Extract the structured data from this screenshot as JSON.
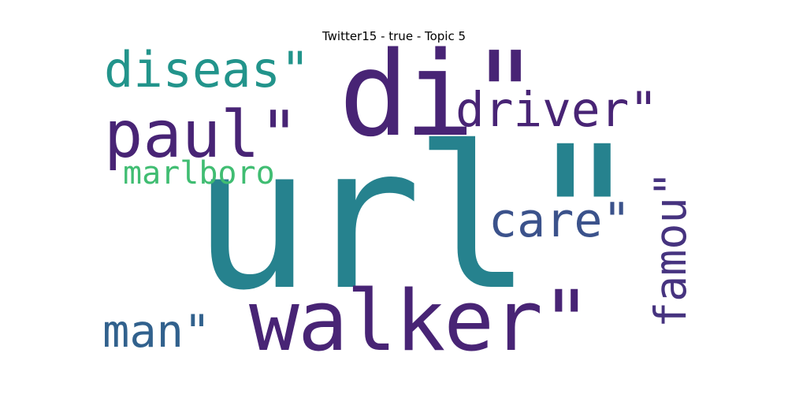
{
  "title": "Twitter15 - true - Topic 5",
  "words": [
    {
      "text": "url\"",
      "color": "#26828e",
      "id": "word-url"
    },
    {
      "text": "di\"",
      "color": "#482475",
      "id": "word-di"
    },
    {
      "text": "walker\"",
      "color": "#482475",
      "id": "word-walker"
    },
    {
      "text": "paul\"",
      "color": "#482475",
      "id": "word-paul"
    },
    {
      "text": "diseas\"",
      "color": "#22948b",
      "id": "word-diseas"
    },
    {
      "text": "driver\"",
      "color": "#482475",
      "id": "word-driver"
    },
    {
      "text": "marlboro",
      "color": "#40bd72",
      "id": "word-marlboro"
    },
    {
      "text": "care\"",
      "color": "#3b528b",
      "id": "word-care"
    },
    {
      "text": "famou\"",
      "color": "#46337f",
      "id": "word-famou"
    },
    {
      "text": "man\"",
      "color": "#31618d",
      "id": "word-man"
    }
  ]
}
